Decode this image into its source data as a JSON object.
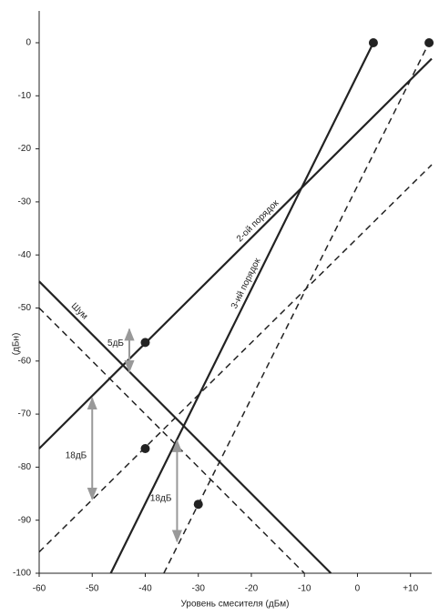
{
  "chart_data": {
    "type": "line",
    "x_label": "Уровень смесителя (дБм)",
    "y_label": "(дБн)",
    "xlim": [
      -60,
      14
    ],
    "ylim": [
      -100,
      6
    ],
    "xticks": [
      -60,
      -50,
      -40,
      -30,
      -20,
      -10,
      0,
      {
        "value": 10,
        "label": "+10"
      }
    ],
    "yticks": [
      0,
      -10,
      -20,
      -30,
      -40,
      -50,
      -60,
      -70,
      -80,
      -90,
      -100
    ],
    "series": [
      {
        "name": "2-ой порядок",
        "color": "#222222",
        "dashed": false,
        "x": [
          -60,
          14
        ],
        "values": [
          -76.5,
          -3
        ]
      },
      {
        "name": "3-ий порядок",
        "color": "#222222",
        "dashed": false,
        "x": [
          -46.5,
          3
        ],
        "values": [
          -100,
          0
        ]
      },
      {
        "name": "Шум",
        "color": "#222222",
        "dashed": false,
        "x": [
          -60,
          -5
        ],
        "values": [
          -45,
          -100
        ]
      },
      {
        "color": "#222222",
        "dashed": true,
        "x": [
          -60,
          -10
        ],
        "values": [
          -50,
          -100
        ]
      },
      {
        "color": "#222222",
        "dashed": true,
        "x": [
          -60,
          14
        ],
        "values": [
          -96,
          -23
        ]
      },
      {
        "color": "#222222",
        "dashed": true,
        "x": [
          -36.5,
          13.5
        ],
        "values": [
          -100,
          0
        ]
      }
    ],
    "points": {
      "color": "#222222",
      "x": [
        3,
        13.5,
        -40,
        -40,
        -30
      ],
      "values": [
        0,
        0,
        -56.5,
        -76.5,
        -87
      ]
    },
    "arrows": [
      {
        "text": "5дБ",
        "x": -43,
        "from": -54,
        "to": -62
      },
      {
        "text": "18дБ",
        "x": -50,
        "from": -67,
        "to": -86
      },
      {
        "text": "18дБ",
        "x": -34,
        "from": -75,
        "to": -94
      }
    ],
    "arrow_color": "#999999"
  }
}
